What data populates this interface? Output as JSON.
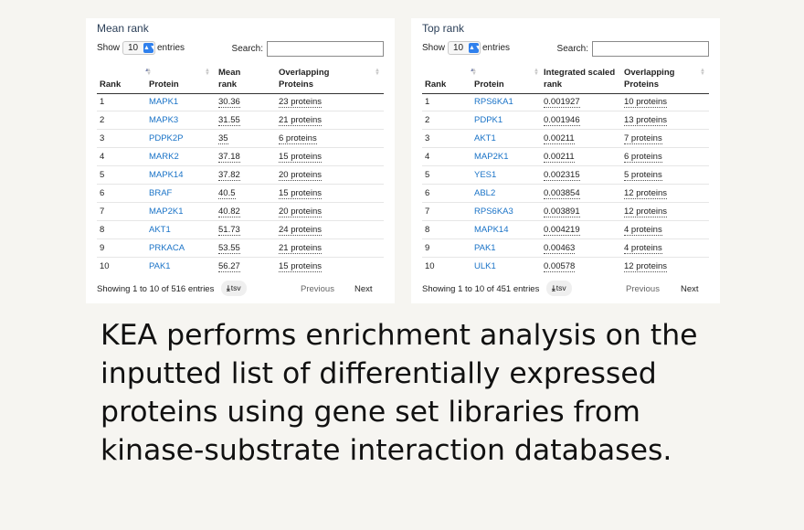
{
  "panels": [
    {
      "title": "Mean rank",
      "show_label": "Show",
      "length_value": "10",
      "entries_label": "entries",
      "search_label": "Search:",
      "columns": [
        "Rank",
        "Protein",
        "Mean rank",
        "Overlapping Proteins"
      ],
      "rows": [
        [
          "1",
          "MAPK1",
          "30.36",
          "23 proteins"
        ],
        [
          "2",
          "MAPK3",
          "31.55",
          "21 proteins"
        ],
        [
          "3",
          "PDPK2P",
          "35",
          "6 proteins"
        ],
        [
          "4",
          "MARK2",
          "37.18",
          "15 proteins"
        ],
        [
          "5",
          "MAPK14",
          "37.82",
          "20 proteins"
        ],
        [
          "6",
          "BRAF",
          "40.5",
          "15 proteins"
        ],
        [
          "7",
          "MAP2K1",
          "40.82",
          "20 proteins"
        ],
        [
          "8",
          "AKT1",
          "51.73",
          "24 proteins"
        ],
        [
          "9",
          "PRKACA",
          "53.55",
          "21 proteins"
        ],
        [
          "10",
          "PAK1",
          "56.27",
          "15 proteins"
        ]
      ],
      "info": "Showing 1 to 10 of 516 entries",
      "tsv_label": "tsv",
      "prev_label": "Previous",
      "next_label": "Next"
    },
    {
      "title": "Top rank",
      "show_label": "Show",
      "length_value": "10",
      "entries_label": "entries",
      "search_label": "Search:",
      "columns": [
        "Rank",
        "Protein",
        "Integrated scaled rank",
        "Overlapping Proteins"
      ],
      "rows": [
        [
          "1",
          "RPS6KA1",
          "0.001927",
          "10 proteins"
        ],
        [
          "2",
          "PDPK1",
          "0.001946",
          "13 proteins"
        ],
        [
          "3",
          "AKT1",
          "0.00211",
          "7 proteins"
        ],
        [
          "4",
          "MAP2K1",
          "0.00211",
          "6 proteins"
        ],
        [
          "5",
          "YES1",
          "0.002315",
          "5 proteins"
        ],
        [
          "6",
          "ABL2",
          "0.003854",
          "12 proteins"
        ],
        [
          "7",
          "RPS6KA3",
          "0.003891",
          "12 proteins"
        ],
        [
          "8",
          "MAPK14",
          "0.004219",
          "4 proteins"
        ],
        [
          "9",
          "PAK1",
          "0.00463",
          "4 proteins"
        ],
        [
          "10",
          "ULK1",
          "0.00578",
          "12 proteins"
        ]
      ],
      "info": "Showing 1 to 10 of 451 entries",
      "tsv_label": "tsv",
      "prev_label": "Previous",
      "next_label": "Next"
    }
  ],
  "caption": "KEA performs enrichment analysis on the inputted list of differentially expressed proteins using gene set libraries from kinase-substrate interaction databases.",
  "colors": {
    "background": "#f6f5f1",
    "link": "#1a73c7",
    "title": "#2b3f58",
    "select_accent": "#2f80ed"
  },
  "icons": {
    "download": "download-icon",
    "sort": "sort-icon",
    "select_arrow": "chevron-updown-icon"
  }
}
